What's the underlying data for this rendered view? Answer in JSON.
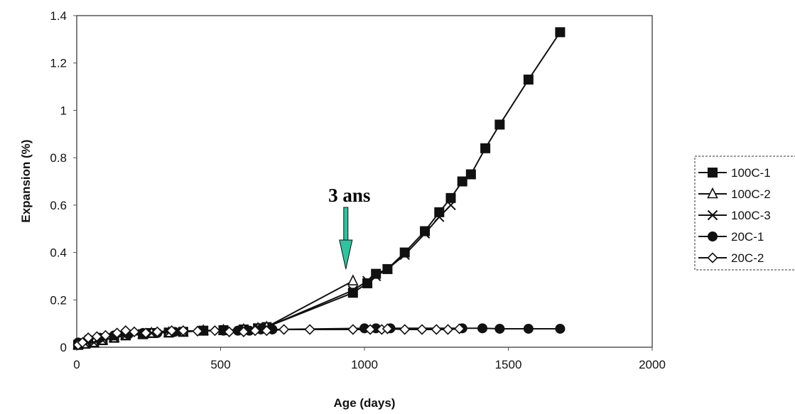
{
  "chart_data": {
    "type": "line",
    "title": "",
    "xlabel": "Age (days)",
    "ylabel": "Expansion (%)",
    "xlim": [
      0,
      2000
    ],
    "ylim": [
      0,
      1.4
    ],
    "x_ticks": [
      "0",
      "500",
      "1000",
      "1500",
      "2000"
    ],
    "y_ticks": [
      "0",
      "0.2",
      "0.4",
      "0.6",
      "0.8",
      "1",
      "1.2",
      "1.4"
    ],
    "grid": false,
    "legend_position": "right",
    "annotation": {
      "text": "3 ans",
      "x": 960,
      "y": 0.27,
      "arrow_color": "#2ec4a0"
    },
    "series": [
      {
        "name": "100C-1",
        "marker": "filled-square",
        "x": [
          5,
          30,
          60,
          90,
          130,
          170,
          230,
          260,
          320,
          370,
          440,
          510,
          580,
          630,
          660,
          960,
          1010,
          1040,
          1080,
          1140,
          1210,
          1260,
          1300,
          1340,
          1370,
          1420,
          1470,
          1570,
          1680
        ],
        "y": [
          0.01,
          0.015,
          0.02,
          0.03,
          0.04,
          0.05,
          0.055,
          0.06,
          0.062,
          0.065,
          0.07,
          0.072,
          0.075,
          0.08,
          0.085,
          0.23,
          0.27,
          0.31,
          0.33,
          0.4,
          0.49,
          0.57,
          0.63,
          0.7,
          0.73,
          0.84,
          0.94,
          1.13,
          1.33
        ]
      },
      {
        "name": "100C-2",
        "marker": "open-triangle",
        "x": [
          5,
          30,
          60,
          90,
          130,
          170,
          230,
          260,
          320,
          370,
          440,
          510,
          580,
          630,
          660,
          960
        ],
        "y": [
          0.01,
          0.015,
          0.02,
          0.03,
          0.04,
          0.05,
          0.055,
          0.06,
          0.062,
          0.065,
          0.07,
          0.072,
          0.075,
          0.08,
          0.085,
          0.28
        ]
      },
      {
        "name": "100C-3",
        "marker": "x",
        "x": [
          5,
          30,
          60,
          90,
          130,
          170,
          230,
          260,
          320,
          370,
          440,
          510,
          580,
          630,
          660,
          960,
          1010,
          1040,
          1080,
          1140,
          1210,
          1260,
          1300
        ],
        "y": [
          0.01,
          0.015,
          0.02,
          0.03,
          0.04,
          0.05,
          0.055,
          0.06,
          0.062,
          0.065,
          0.07,
          0.072,
          0.075,
          0.08,
          0.085,
          0.24,
          0.28,
          0.3,
          0.33,
          0.39,
          0.48,
          0.55,
          0.6
        ]
      },
      {
        "name": "20C-1",
        "marker": "filled-circle",
        "x": [
          5,
          40,
          80,
          130,
          180,
          230,
          280,
          340,
          440,
          510,
          560,
          600,
          640,
          680,
          1000,
          1040,
          1090,
          1340,
          1410,
          1470,
          1570,
          1680
        ],
        "y": [
          0.02,
          0.035,
          0.04,
          0.05,
          0.055,
          0.06,
          0.06,
          0.065,
          0.07,
          0.07,
          0.07,
          0.07,
          0.075,
          0.075,
          0.08,
          0.08,
          0.08,
          0.08,
          0.08,
          0.078,
          0.078,
          0.078
        ]
      },
      {
        "name": "20C-2",
        "marker": "open-diamond",
        "x": [
          5,
          20,
          40,
          70,
          100,
          140,
          170,
          200,
          240,
          280,
          330,
          370,
          420,
          480,
          530,
          580,
          620,
          660,
          720,
          810,
          960,
          1020,
          1060,
          1080,
          1140,
          1200,
          1250,
          1290,
          1330
        ],
        "y": [
          0.01,
          0.02,
          0.04,
          0.045,
          0.05,
          0.06,
          0.07,
          0.065,
          0.06,
          0.065,
          0.07,
          0.07,
          0.068,
          0.07,
          0.065,
          0.065,
          0.07,
          0.07,
          0.075,
          0.075,
          0.075,
          0.075,
          0.075,
          0.078,
          0.075,
          0.075,
          0.075,
          0.075,
          0.078
        ]
      }
    ]
  }
}
